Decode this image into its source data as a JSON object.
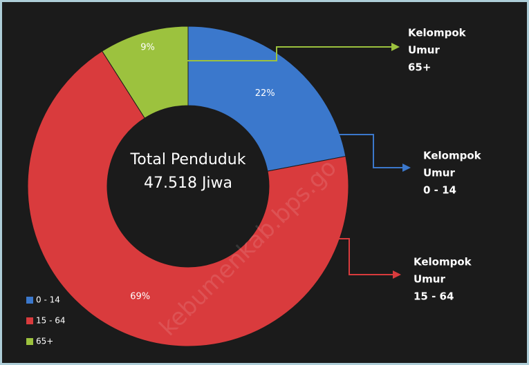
{
  "chart_data": {
    "type": "donut",
    "categories": [
      "0 - 14",
      "15 - 64",
      "65+"
    ],
    "values": [
      22,
      69,
      9
    ],
    "value_labels": [
      "22%",
      "69%",
      "9%"
    ],
    "colors": [
      "#3b78cc",
      "#d93b3d",
      "#9cc23e"
    ],
    "center_text": [
      "Total Penduduk",
      "47.518 Jiwa"
    ],
    "annotations": [
      [
        "Kelompok",
        "Umur",
        "0 - 14"
      ],
      [
        "Kelompok",
        "Umur",
        "15 - 64"
      ],
      [
        "Kelompok",
        "Umur",
        "65+"
      ]
    ],
    "legend": "bottom-left",
    "watermark": "kebumenkab.bps.go"
  }
}
